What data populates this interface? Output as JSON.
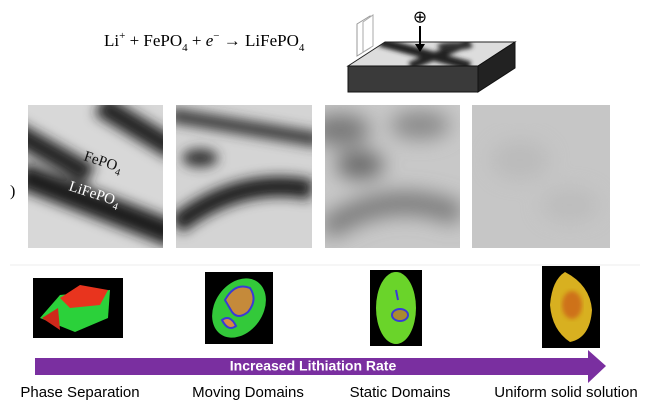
{
  "equation": {
    "parts": [
      "Li",
      "+",
      " + FePO",
      "4",
      " + ",
      "e",
      "−",
      " → LiFePO",
      "4"
    ]
  },
  "probe_symbol": "⊕",
  "panel_labels": {
    "top": [
      "FePO",
      "4"
    ],
    "bottom": [
      "LiFePO",
      "4"
    ],
    "edge": ")"
  },
  "arrow_label": "Increased Lithiation Rate",
  "regimes": [
    "Phase Separation",
    "Moving Domains",
    "Static Domains",
    "Uniform solid solution"
  ]
}
